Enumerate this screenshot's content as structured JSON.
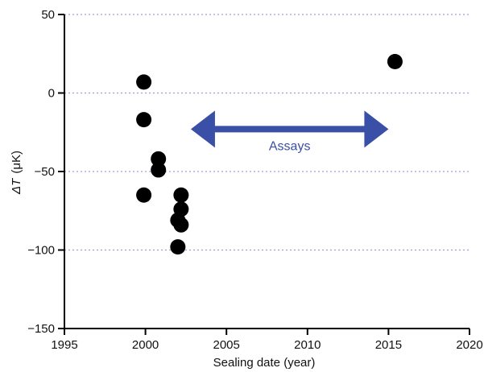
{
  "chart_data": {
    "type": "scatter",
    "title": "",
    "xlabel": "Sealing date (year)",
    "ylabel_symbol": "ΔT",
    "ylabel_unit": "(μK)",
    "xlim": [
      1995,
      2020
    ],
    "ylim": [
      -150,
      50
    ],
    "xticks": [
      1995,
      2000,
      2005,
      2010,
      2015,
      2020
    ],
    "yticks": [
      50,
      0,
      -50,
      -100,
      -150
    ],
    "ytick_labels": [
      "50",
      "0",
      "−50",
      "−100",
      "−150"
    ],
    "grid": "dotted horizontal at y-ticks",
    "series": [
      {
        "points": [
          {
            "x": 1999.9,
            "y": 7
          },
          {
            "x": 1999.9,
            "y": -17
          },
          {
            "x": 1999.9,
            "y": -65
          },
          {
            "x": 2000.8,
            "y": -42
          },
          {
            "x": 2000.8,
            "y": -49
          },
          {
            "x": 2002.2,
            "y": -65
          },
          {
            "x": 2002.2,
            "y": -74
          },
          {
            "x": 2002.0,
            "y": -81
          },
          {
            "x": 2002.2,
            "y": -84
          },
          {
            "x": 2002.0,
            "y": -98
          },
          {
            "x": 2015.4,
            "y": 20
          }
        ]
      }
    ],
    "annotation": {
      "text": "Assays",
      "x_start": 2002.8,
      "x_end": 2015.0,
      "y": -23,
      "color": "#3a4fa6"
    },
    "colors": {
      "points": "#000000",
      "grid": "#9aa0d8",
      "axis": "#000000"
    }
  }
}
